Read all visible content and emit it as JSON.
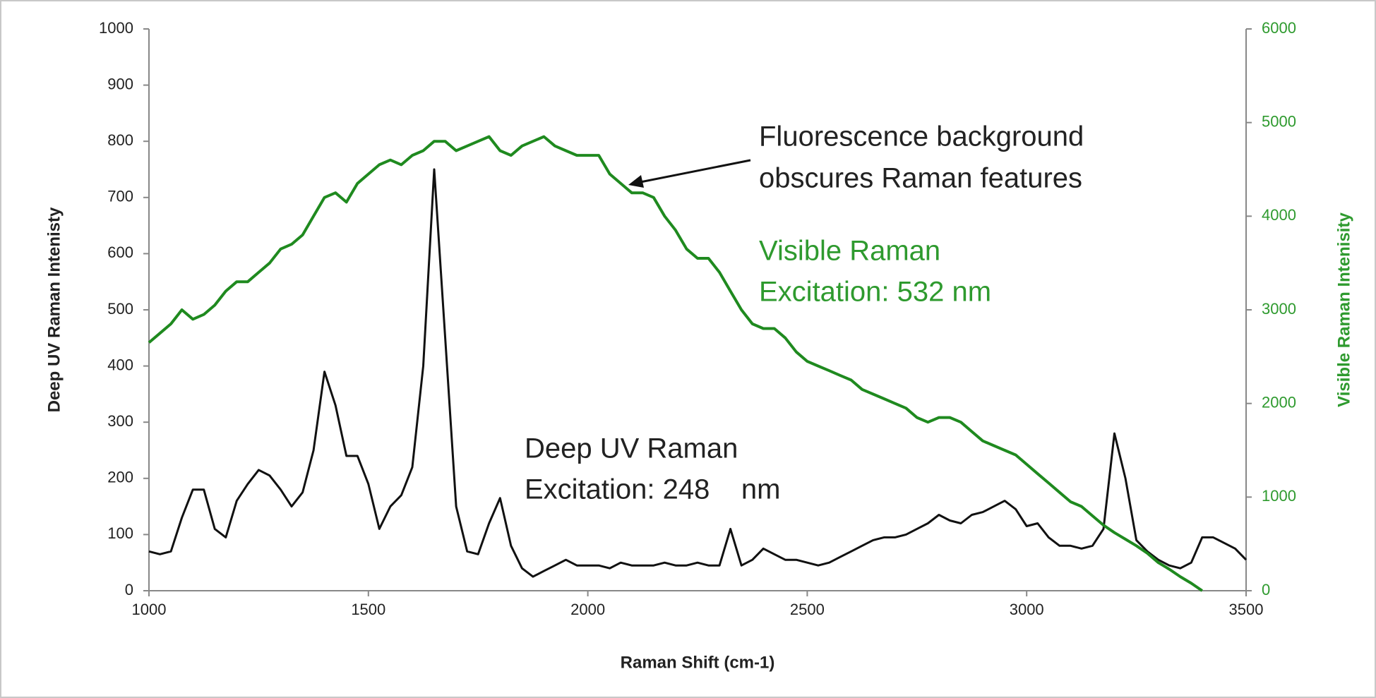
{
  "chart_data": {
    "type": "line",
    "xlabel": "Raman Shift (cm-1)",
    "ylabel": "Deep UV Raman Intenisty",
    "y2label": "Visible Raman Intenisity",
    "annotations": [
      "Fluorescence background",
      "obscures Raman features",
      "Visible Raman",
      "Excitation: 532 nm",
      "Deep UV Raman",
      "Excitation: 248    nm"
    ],
    "xlim": [
      1000,
      3500
    ],
    "xticks": [
      1000,
      1500,
      2000,
      2500,
      3000,
      3500
    ],
    "ylim": [
      0,
      1000
    ],
    "yticks": [
      0,
      100,
      200,
      300,
      400,
      500,
      600,
      700,
      800,
      900,
      1000
    ],
    "y2lim": [
      0,
      6000
    ],
    "y2ticks": [
      0,
      1000,
      2000,
      3000,
      4000,
      5000,
      6000
    ],
    "x": [
      1000,
      1025,
      1050,
      1075,
      1100,
      1125,
      1150,
      1175,
      1200,
      1225,
      1250,
      1275,
      1300,
      1325,
      1350,
      1375,
      1400,
      1425,
      1450,
      1475,
      1500,
      1525,
      1550,
      1575,
      1600,
      1625,
      1650,
      1675,
      1700,
      1725,
      1750,
      1775,
      1800,
      1825,
      1850,
      1875,
      1900,
      1925,
      1950,
      1975,
      2000,
      2025,
      2050,
      2075,
      2100,
      2125,
      2150,
      2175,
      2200,
      2225,
      2250,
      2275,
      2300,
      2325,
      2350,
      2375,
      2400,
      2425,
      2450,
      2475,
      2500,
      2525,
      2550,
      2575,
      2600,
      2625,
      2650,
      2675,
      2700,
      2725,
      2750,
      2775,
      2800,
      2825,
      2850,
      2875,
      2900,
      2925,
      2950,
      2975,
      3000,
      3025,
      3050,
      3075,
      3100,
      3125,
      3150,
      3175,
      3200,
      3225,
      3250,
      3275,
      3300,
      3325,
      3350,
      3375,
      3400,
      3425,
      3450,
      3475,
      3500
    ],
    "series": [
      {
        "name": "Deep UV Raman",
        "color": "#111111",
        "axis": "y",
        "values": [
          70,
          65,
          70,
          130,
          180,
          180,
          110,
          95,
          160,
          190,
          215,
          205,
          180,
          150,
          175,
          250,
          390,
          330,
          240,
          240,
          190,
          110,
          150,
          170,
          220,
          400,
          750,
          450,
          150,
          70,
          65,
          120,
          165,
          80,
          40,
          25,
          35,
          45,
          55,
          45,
          45,
          45,
          40,
          50,
          45,
          45,
          45,
          50,
          45,
          45,
          50,
          45,
          45,
          110,
          45,
          55,
          75,
          65,
          55,
          55,
          50,
          45,
          50,
          60,
          70,
          80,
          90,
          95,
          95,
          100,
          110,
          120,
          135,
          125,
          120,
          135,
          140,
          150,
          160,
          145,
          115,
          120,
          95,
          80,
          80,
          75,
          80,
          110,
          280,
          200,
          90,
          70,
          55,
          45,
          40,
          50,
          95,
          95,
          85,
          75,
          55
        ]
      },
      {
        "name": "Visible Raman",
        "color": "#1f8a1f",
        "axis": "y2",
        "values": [
          2650,
          2750,
          2850,
          3000,
          2900,
          2950,
          3050,
          3200,
          3300,
          3300,
          3400,
          3500,
          3650,
          3700,
          3800,
          4000,
          4200,
          4250,
          4150,
          4350,
          4450,
          4550,
          4600,
          4550,
          4650,
          4700,
          4800,
          4800,
          4700,
          4750,
          4800,
          4850,
          4700,
          4650,
          4750,
          4800,
          4850,
          4750,
          4700,
          4650,
          4650,
          4650,
          4450,
          4350,
          4250,
          4250,
          4200,
          4000,
          3850,
          3650,
          3550,
          3550,
          3400,
          3200,
          3000,
          2850,
          2800,
          2800,
          2700,
          2550,
          2450,
          2400,
          2350,
          2300,
          2250,
          2150,
          2100,
          2050,
          2000,
          1950,
          1850,
          1800,
          1850,
          1850,
          1800,
          1700,
          1600,
          1550,
          1500,
          1450,
          1350,
          1250,
          1150,
          1050,
          950,
          900,
          800,
          700,
          620,
          550,
          480,
          400,
          300,
          230,
          150,
          80,
          0,
          null,
          null,
          null,
          null
        ]
      }
    ]
  }
}
